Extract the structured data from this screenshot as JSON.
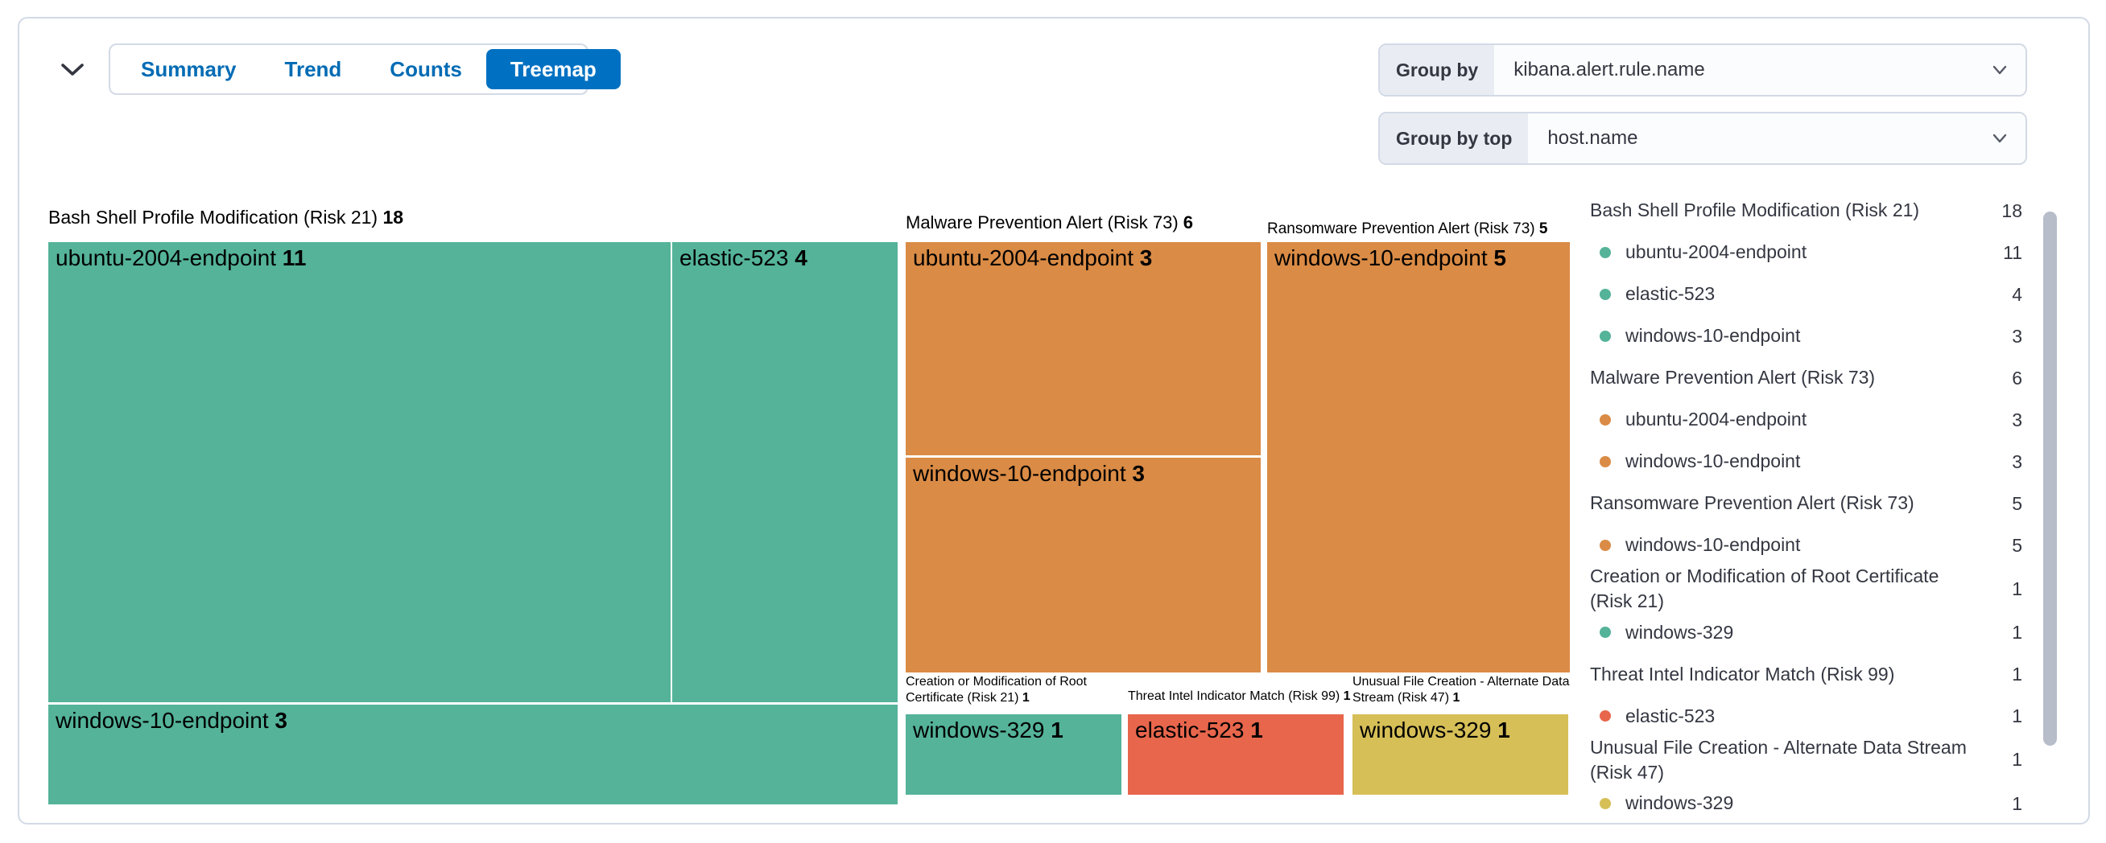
{
  "header": {
    "tabs": [
      {
        "label": "Summary",
        "active": false
      },
      {
        "label": "Trend",
        "active": false
      },
      {
        "label": "Counts",
        "active": false
      },
      {
        "label": "Treemap",
        "active": true
      }
    ],
    "group_by": {
      "label": "Group by",
      "value": "kibana.alert.rule.name"
    },
    "group_by_top": {
      "label": "Group by top",
      "value": "host.name"
    }
  },
  "colors": {
    "accent_blue": "#0071c2",
    "link_blue": "#006bb4",
    "green": "#54B399",
    "orange": "#DA8B45",
    "red": "#E7664C",
    "yellow": "#D6BF57",
    "border": "#d3dae6",
    "text": "#343741"
  },
  "chart_data": {
    "type": "treemap",
    "title": "Alerts treemap grouped by kibana.alert.rule.name and host.name",
    "legend_position": "right",
    "groups": [
      {
        "name": "Bash Shell Profile Modification (Risk 21)",
        "count": 18,
        "color": "#54B399",
        "children": [
          {
            "name": "ubuntu-2004-endpoint",
            "count": 11
          },
          {
            "name": "elastic-523",
            "count": 4
          },
          {
            "name": "windows-10-endpoint",
            "count": 3
          }
        ]
      },
      {
        "name": "Malware Prevention Alert (Risk 73)",
        "count": 6,
        "color": "#DA8B45",
        "children": [
          {
            "name": "ubuntu-2004-endpoint",
            "count": 3
          },
          {
            "name": "windows-10-endpoint",
            "count": 3
          }
        ]
      },
      {
        "name": "Ransomware Prevention Alert (Risk 73)",
        "count": 5,
        "color": "#DA8B45",
        "children": [
          {
            "name": "windows-10-endpoint",
            "count": 5
          }
        ]
      },
      {
        "name": "Creation or Modification of Root Certificate (Risk 21)",
        "count": 1,
        "color": "#54B399",
        "children": [
          {
            "name": "windows-329",
            "count": 1
          }
        ]
      },
      {
        "name": "Threat Intel Indicator Match (Risk 99)",
        "count": 1,
        "color": "#E7664C",
        "children": [
          {
            "name": "elastic-523",
            "count": 1
          }
        ]
      },
      {
        "name": "Unusual File Creation - Alternate Data Stream (Risk 47)",
        "count": 1,
        "color": "#D6BF57",
        "children": [
          {
            "name": "windows-329",
            "count": 1
          }
        ]
      }
    ]
  }
}
